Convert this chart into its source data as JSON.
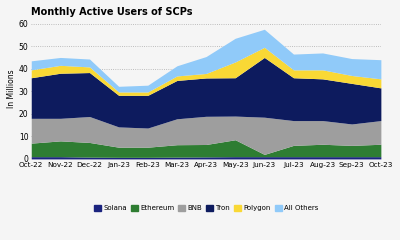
{
  "title": "Monthly Active Users of SCPs",
  "ylabel": "In Millions",
  "xlabels": [
    "Oct-22",
    "Nov-22",
    "Dec-22",
    "Jan-23",
    "Feb-23",
    "Mar-23",
    "Apr-23",
    "May-23",
    "Jun-23",
    "Jul-23",
    "Aug-23",
    "Sep-23",
    "Oct-23"
  ],
  "ylim": [
    0,
    62
  ],
  "yticks": [
    0,
    10,
    20,
    30,
    40,
    50,
    60
  ],
  "series": {
    "Solana": [
      1.0,
      1.0,
      0.8,
      0.7,
      0.7,
      0.8,
      0.9,
      1.0,
      1.0,
      1.0,
      1.0,
      1.0,
      1.0
    ],
    "Ethereum": [
      6.0,
      7.0,
      6.5,
      4.5,
      4.5,
      5.5,
      5.5,
      7.5,
      1.0,
      5.0,
      5.5,
      5.0,
      5.5
    ],
    "BNB": [
      11.0,
      10.0,
      11.5,
      9.0,
      8.5,
      11.5,
      12.5,
      10.5,
      16.5,
      11.0,
      10.5,
      9.5,
      10.5
    ],
    "Tron": [
      18.0,
      20.0,
      19.5,
      14.0,
      14.5,
      17.0,
      17.0,
      17.0,
      26.5,
      19.0,
      18.5,
      18.0,
      14.5
    ],
    "Polygon": [
      3.5,
      3.5,
      2.5,
      1.5,
      1.5,
      2.0,
      2.0,
      7.0,
      4.5,
      3.5,
      4.0,
      3.5,
      4.0
    ],
    "All Others": [
      4.0,
      3.5,
      3.5,
      2.5,
      3.0,
      4.5,
      7.5,
      10.5,
      8.0,
      7.0,
      7.5,
      7.5,
      8.5
    ]
  },
  "colors": {
    "Solana": "#1a237e",
    "Ethereum": "#2e7d32",
    "BNB": "#9e9e9e",
    "Tron": "#0d1b5e",
    "Polygon": "#f9d835",
    "All Others": "#90caf9"
  },
  "legend_order": [
    "Solana",
    "Ethereum",
    "BNB",
    "Tron",
    "Polygon",
    "All Others"
  ],
  "stack_order": [
    "Solana",
    "Ethereum",
    "BNB",
    "Tron",
    "Polygon",
    "All Others"
  ],
  "background_color": "#f5f5f5",
  "grid_color": "#aaaaaa"
}
